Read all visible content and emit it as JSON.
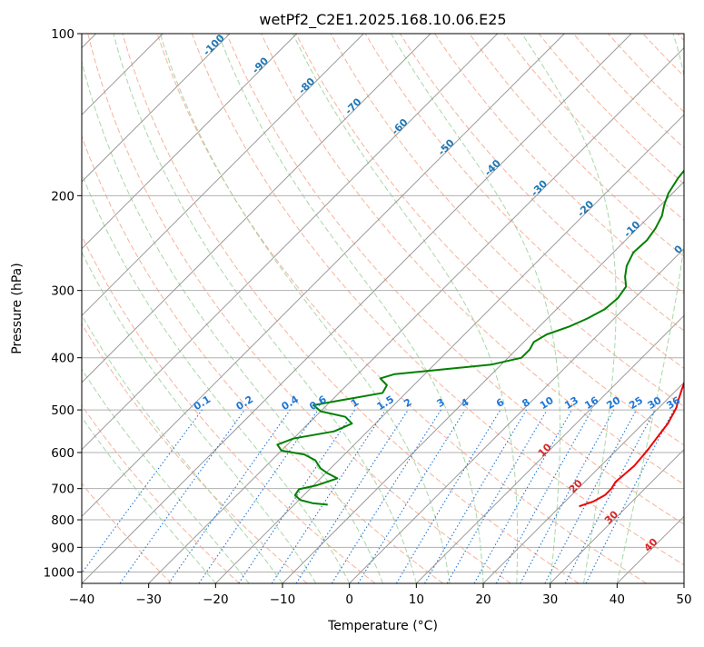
{
  "chart_data": {
    "type": "line",
    "subtype": "skew-t log-p diagram",
    "title": "wetPf2_C2E1.2025.168.10.06.E25",
    "xlabel": "Temperature (°C)",
    "ylabel": "Pressure (hPa)",
    "xlim": [
      -40,
      50
    ],
    "ylim": [
      1050,
      100
    ],
    "y_scale": "log",
    "grid": true,
    "x_ticks": [
      "−40",
      "−30",
      "−20",
      "−10",
      "0",
      "10",
      "20",
      "30",
      "40",
      "50"
    ],
    "y_ticks": [
      "100",
      "200",
      "300",
      "400",
      "500",
      "600",
      "700",
      "800",
      "900",
      "1000"
    ],
    "colors": {
      "temperature": "#ee0000",
      "dewpoint": "#008000",
      "isotherm": "#9a9a9a",
      "isobar": "#b0b0b0",
      "dry_adiabat": "#f4a58a",
      "moist_adiabat": "#9fd39f",
      "mixing_ratio": "#1f77d6",
      "saturation_label": "#1f77b4",
      "lcl_label": "#d62728"
    },
    "series": [
      {
        "name": "Temperature",
        "style": "solid",
        "points": [
          [
            22.8,
            755
          ],
          [
            24.2,
            740
          ],
          [
            25.0,
            720
          ],
          [
            25.0,
            700
          ],
          [
            24.6,
            680
          ],
          [
            24.8,
            660
          ],
          [
            25.0,
            635
          ],
          [
            24.8,
            610
          ],
          [
            24.6,
            590
          ],
          [
            24.3,
            570
          ],
          [
            24.0,
            550
          ],
          [
            23.7,
            530
          ],
          [
            23.1,
            510
          ],
          [
            22.6,
            495
          ],
          [
            21.8,
            480
          ],
          [
            20.8,
            460
          ],
          [
            19.8,
            440
          ],
          [
            18.7,
            420
          ],
          [
            17.9,
            405
          ],
          [
            17.8,
            390
          ],
          [
            17.4,
            375
          ],
          [
            16.5,
            360
          ],
          [
            14.8,
            345
          ],
          [
            12.8,
            330
          ],
          [
            10.7,
            315
          ],
          [
            8.8,
            300
          ],
          [
            7.3,
            285
          ],
          [
            6.2,
            272
          ],
          [
            5.2,
            258
          ],
          [
            4.3,
            245
          ],
          [
            3.0,
            230
          ],
          [
            1.8,
            216
          ],
          [
            0.5,
            204
          ],
          [
            -0.3,
            192
          ],
          [
            -0.8,
            180
          ],
          [
            -1.5,
            168
          ],
          [
            -2.0,
            157
          ],
          [
            -2.9,
            147
          ],
          [
            -4.4,
            137
          ],
          [
            -5.0,
            128
          ],
          [
            -4.6,
            119
          ],
          [
            -3.7,
            111
          ],
          [
            -2.7,
            104
          ],
          [
            -2.0,
            100
          ]
        ]
      },
      {
        "name": "Dewpoint",
        "style": "solid",
        "points": [
          [
            -15.0,
            750
          ],
          [
            -17.5,
            745
          ],
          [
            -19.8,
            735
          ],
          [
            -21.3,
            720
          ],
          [
            -21.6,
            702
          ],
          [
            -19.5,
            690
          ],
          [
            -17.5,
            670
          ],
          [
            -19.8,
            655
          ],
          [
            -21.5,
            642
          ],
          [
            -23.5,
            620
          ],
          [
            -26.0,
            605
          ],
          [
            -30.0,
            595
          ],
          [
            -31.5,
            580
          ],
          [
            -30.0,
            565
          ],
          [
            -25.0,
            548
          ],
          [
            -23.5,
            530
          ],
          [
            -25.5,
            515
          ],
          [
            -30.0,
            503
          ],
          [
            -32.0,
            490
          ],
          [
            -28.0,
            478
          ],
          [
            -23.5,
            465
          ],
          [
            -24.0,
            450
          ],
          [
            -26.0,
            437
          ],
          [
            -24.5,
            429
          ],
          [
            -20.0,
            423
          ],
          [
            -11.5,
            412
          ],
          [
            -8.0,
            400
          ],
          [
            -8.0,
            386
          ],
          [
            -8.5,
            374
          ],
          [
            -7.7,
            362
          ],
          [
            -5.5,
            350
          ],
          [
            -4.0,
            338
          ],
          [
            -2.8,
            325
          ],
          [
            -2.5,
            310
          ],
          [
            -3.0,
            295
          ],
          [
            -4.6,
            283
          ],
          [
            -6.0,
            270
          ],
          [
            -7.0,
            255
          ],
          [
            -6.8,
            242
          ],
          [
            -7.3,
            230
          ],
          [
            -8.2,
            218
          ],
          [
            -9.5,
            208
          ],
          [
            -10.6,
            198
          ],
          [
            -11.4,
            186
          ],
          [
            -11.8,
            176
          ],
          [
            -11.2,
            167
          ],
          [
            -10.4,
            158
          ],
          [
            -9.3,
            148
          ],
          [
            -8.0,
            138
          ],
          [
            -6.7,
            128
          ],
          [
            -5.8,
            118
          ],
          [
            -5.0,
            108
          ],
          [
            -4.5,
            100
          ]
        ]
      }
    ],
    "saturation_isotherm_labels": [
      "-100",
      "-90",
      "-80",
      "-70",
      "-60",
      "-50",
      "-40",
      "-30",
      "-20",
      "-10",
      "0"
    ],
    "lcl_isotherm_labels": [
      "10",
      "20",
      "30",
      "40"
    ],
    "mixing_ratio_labels": [
      "0.1",
      "0.2",
      "0.4",
      "0.6",
      "1",
      "1.5",
      "2",
      "3",
      "4",
      "6",
      "8",
      "10",
      "13",
      "16",
      "20",
      "25",
      "30",
      "36"
    ]
  }
}
